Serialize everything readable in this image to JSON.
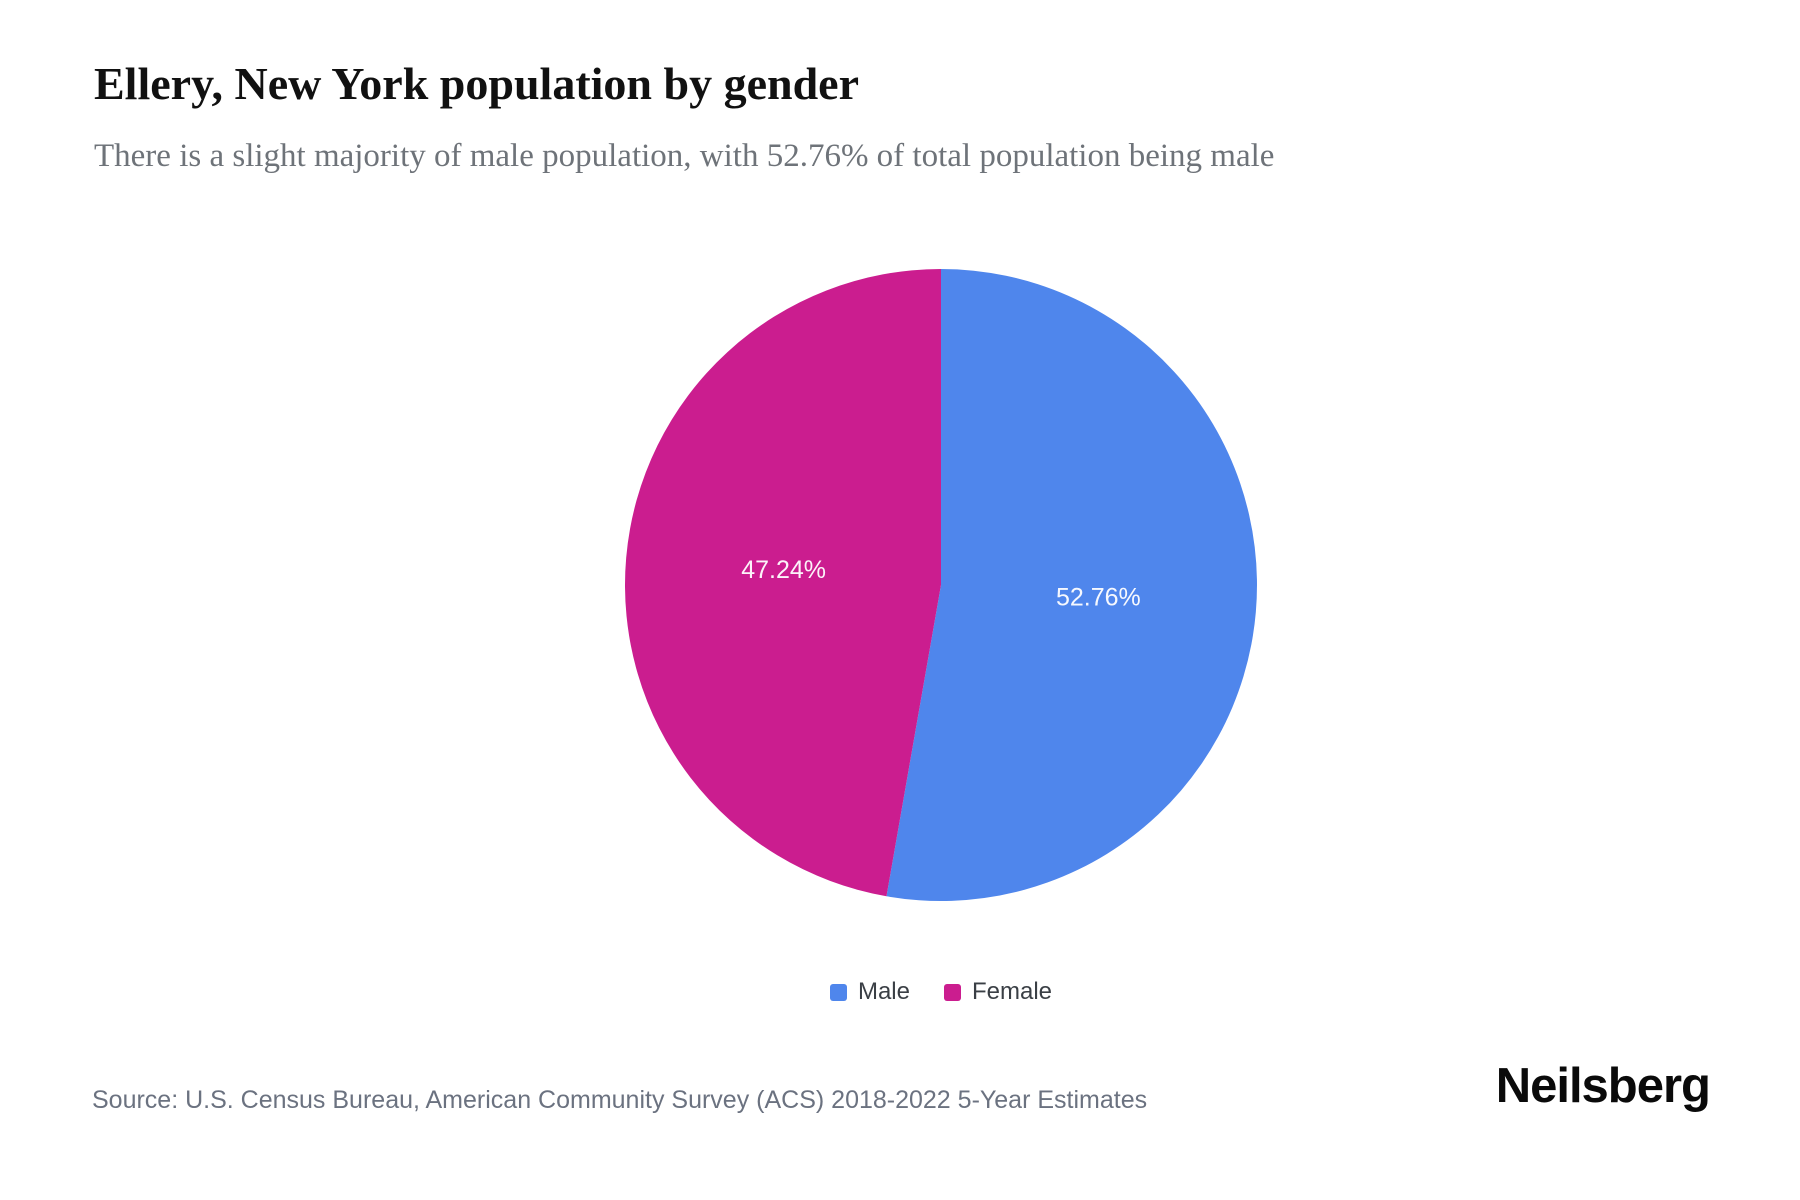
{
  "header": {
    "title": "Ellery, New York population by gender",
    "subtitle": "There is a slight majority of male population, with 52.76% of total population being male"
  },
  "chart_data": {
    "type": "pie",
    "title": "Ellery, New York population by gender",
    "legend_position": "bottom",
    "start_angle_deg": 0,
    "direction": "clockwise",
    "slices": [
      {
        "label": "Male",
        "value": 52.76,
        "display": "52.76%",
        "color": "#4f86ec"
      },
      {
        "label": "Female",
        "value": 47.24,
        "display": "47.24%",
        "color": "#cb1d8f"
      }
    ]
  },
  "footer": {
    "source": "Source: U.S. Census Bureau, American Community Survey (ACS) 2018-2022 5-Year Estimates",
    "brand": "Neilsberg"
  },
  "colors": {
    "male_blue": "#4f86ec",
    "female_magenta": "#cb1d8f",
    "title_text": "#111111",
    "subtitle_gray": "#6e7379",
    "source_gray": "#6b7280",
    "slice_label_white": "#ffffff"
  }
}
